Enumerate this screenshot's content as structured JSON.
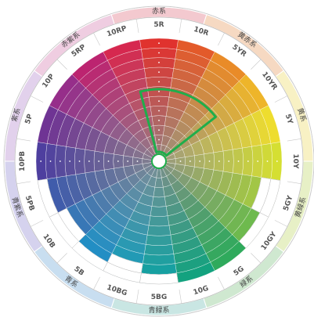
{
  "wheel": {
    "outer_ring": [
      {
        "name": "赤系",
        "color": "#f3c9cf"
      },
      {
        "name": "黄赤系",
        "color": "#f6d9c2"
      },
      {
        "name": "黄系",
        "color": "#f8f1c4"
      },
      {
        "name": "黄緑系",
        "color": "#e7f0c6"
      },
      {
        "name": "緑系",
        "color": "#cfe8d0"
      },
      {
        "name": "青緑系",
        "color": "#c9e6e3"
      },
      {
        "name": "青系",
        "color": "#c8def0"
      },
      {
        "name": "青紫系",
        "color": "#d5d2ee"
      },
      {
        "name": "紫系",
        "color": "#e2d1ec"
      },
      {
        "name": "赤紫系",
        "color": "#efcde1"
      }
    ],
    "hues": [
      {
        "label": "5R",
        "color": "#e0322e"
      },
      {
        "label": "10R",
        "color": "#e35a2a"
      },
      {
        "label": "5YR",
        "color": "#e98b28"
      },
      {
        "label": "10YR",
        "color": "#eeb52a"
      },
      {
        "label": "5Y",
        "color": "#eedd2e"
      },
      {
        "label": "10Y",
        "color": "#d5df32"
      },
      {
        "label": "5GY",
        "color": "#a6cf3a"
      },
      {
        "label": "10GY",
        "color": "#6cbd49"
      },
      {
        "label": "5G",
        "color": "#2faa5c"
      },
      {
        "label": "10G",
        "color": "#13a27f"
      },
      {
        "label": "5BG",
        "color": "#0ea2a3"
      },
      {
        "label": "10BG",
        "color": "#109cbc"
      },
      {
        "label": "5B",
        "color": "#1a8ec8"
      },
      {
        "label": "10B",
        "color": "#2a73bd"
      },
      {
        "label": "5PB",
        "color": "#3a58ad"
      },
      {
        "label": "10PB",
        "color": "#4e3f9f"
      },
      {
        "label": "5P",
        "color": "#6f3494"
      },
      {
        "label": "10P",
        "color": "#962e8a"
      },
      {
        "label": "5RP",
        "color": "#bc2470"
      },
      {
        "label": "10RP",
        "color": "#d6284f"
      }
    ],
    "highlight_color": "#1fae4b",
    "center_fill": "#ffffff",
    "grid_line": "#ffffff"
  }
}
